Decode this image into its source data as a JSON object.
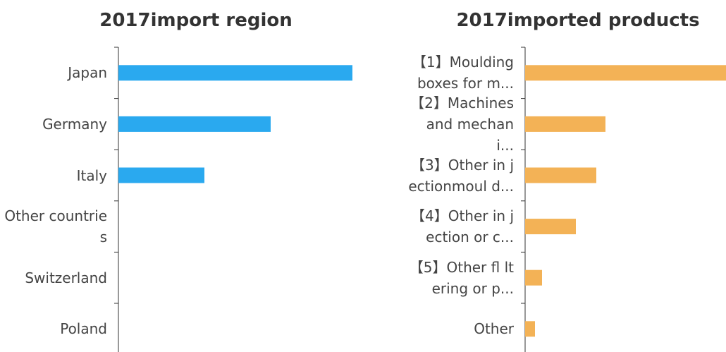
{
  "chart_data": [
    {
      "type": "bar",
      "title": "2017import region",
      "color": "#2aa9ef",
      "categories": [
        "Japan",
        "Germany",
        "Italy",
        "Other countries",
        "Switzerland",
        "Poland"
      ],
      "values": [
        332,
        216,
        122,
        0,
        0,
        0
      ]
    },
    {
      "type": "bar",
      "title": "2017imported products",
      "color": "#f3b256",
      "categories": [
        "【1】Moulding boxes for m...",
        "【2】Machines and mechan i...",
        "【3】Other in jectionmoul d...",
        "【4】Other in jection or c...",
        "【5】Other fl ltering or p...",
        "Other"
      ],
      "values": [
        285,
        114,
        101,
        72,
        24,
        14
      ]
    }
  ]
}
